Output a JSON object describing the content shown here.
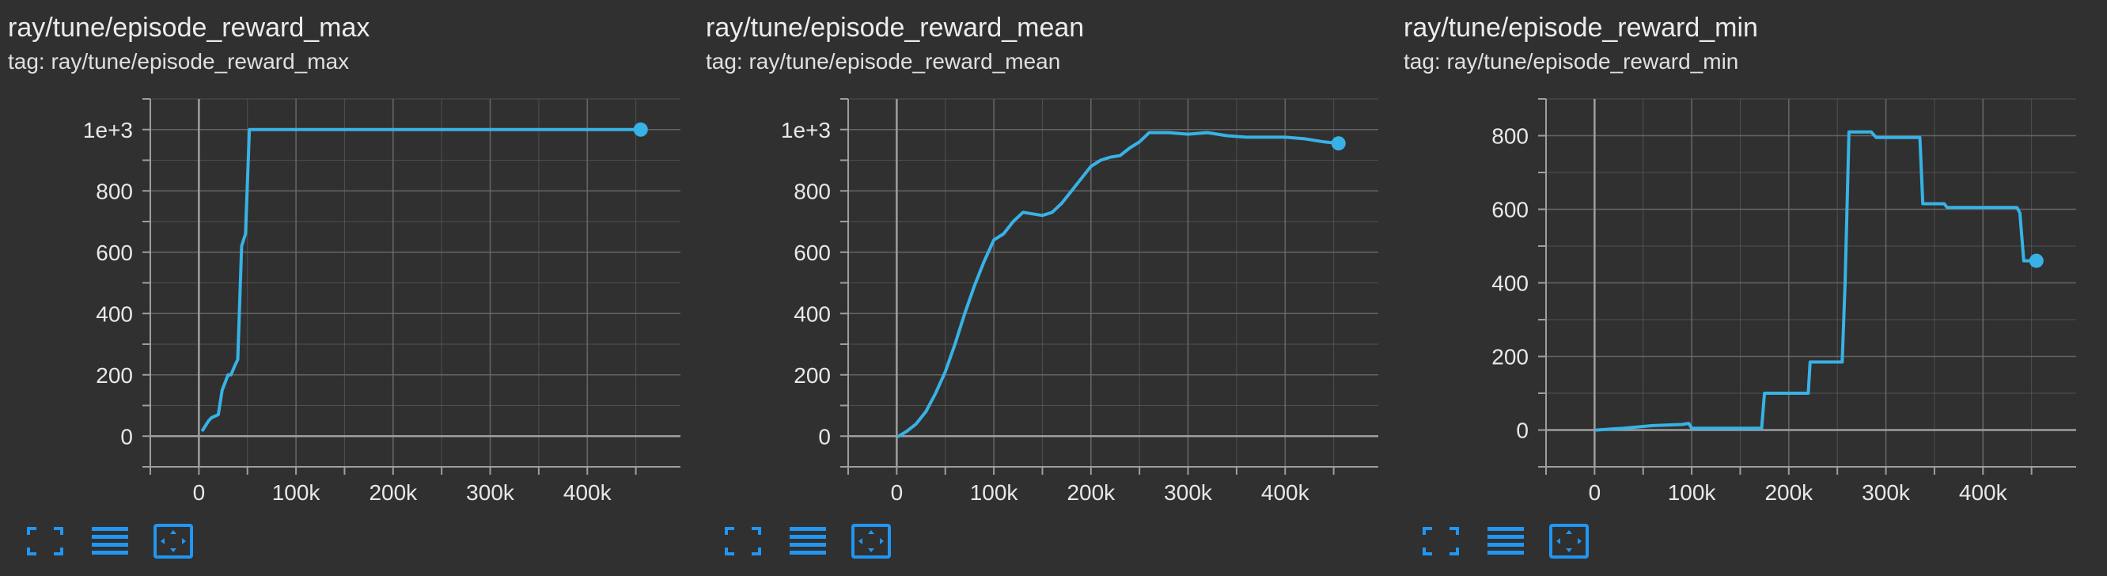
{
  "colors": {
    "background": "#303030",
    "line": "#38b2e6",
    "grid": "#6a6a6a",
    "axis": "#9e9e9e",
    "tick_text": "#e8e8e8",
    "toolbar_icon": "#2196f3"
  },
  "toolbar_icons": [
    "fullscreen-icon",
    "toggle-log-scale-icon",
    "fit-domain-icon"
  ],
  "chart_data": [
    {
      "type": "line",
      "title": "ray/tune/episode_reward_max",
      "tag": "tag: ray/tune/episode_reward_max",
      "xlabel": "",
      "ylabel": "",
      "xlim": [
        -50000,
        500000
      ],
      "ylim": [
        -100,
        1100
      ],
      "grid": true,
      "x_ticks": [
        0,
        100000,
        200000,
        300000,
        400000
      ],
      "x_tick_labels": [
        "0",
        "100k",
        "200k",
        "300k",
        "400k"
      ],
      "y_ticks": [
        0,
        200,
        400,
        600,
        800,
        1000
      ],
      "y_tick_labels": [
        "0",
        "200",
        "400",
        "600",
        "800",
        "1e+3"
      ],
      "series": [
        {
          "x": [
            4000,
            10000,
            13000,
            20000,
            24000,
            30000,
            33000,
            37000,
            40000,
            44000,
            48000,
            52000,
            455000
          ],
          "y": [
            20,
            50,
            60,
            70,
            150,
            200,
            200,
            230,
            250,
            620,
            660,
            1000,
            1000
          ]
        }
      ]
    },
    {
      "type": "line",
      "title": "ray/tune/episode_reward_mean",
      "tag": "tag: ray/tune/episode_reward_mean",
      "xlabel": "",
      "ylabel": "",
      "xlim": [
        -50000,
        500000
      ],
      "ylim": [
        -100,
        1100
      ],
      "grid": true,
      "x_ticks": [
        0,
        100000,
        200000,
        300000,
        400000
      ],
      "x_tick_labels": [
        "0",
        "100k",
        "200k",
        "300k",
        "400k"
      ],
      "y_ticks": [
        0,
        200,
        400,
        600,
        800,
        1000
      ],
      "y_tick_labels": [
        "0",
        "200",
        "400",
        "600",
        "800",
        "1e+3"
      ],
      "series": [
        {
          "x": [
            2000,
            10000,
            20000,
            30000,
            40000,
            50000,
            60000,
            70000,
            80000,
            90000,
            100000,
            110000,
            120000,
            130000,
            140000,
            150000,
            160000,
            170000,
            180000,
            190000,
            200000,
            210000,
            220000,
            230000,
            240000,
            250000,
            260000,
            280000,
            300000,
            320000,
            340000,
            360000,
            380000,
            400000,
            420000,
            440000,
            455000
          ],
          "y": [
            0,
            15,
            40,
            80,
            140,
            210,
            300,
            400,
            490,
            570,
            640,
            660,
            700,
            730,
            725,
            720,
            730,
            760,
            800,
            840,
            880,
            900,
            910,
            915,
            940,
            960,
            990,
            990,
            985,
            990,
            980,
            975,
            975,
            975,
            970,
            960,
            955
          ]
        }
      ]
    },
    {
      "type": "line",
      "title": "ray/tune/episode_reward_min",
      "tag": "tag: ray/tune/episode_reward_min",
      "xlabel": "",
      "ylabel": "",
      "xlim": [
        -50000,
        500000
      ],
      "ylim": [
        -100,
        900
      ],
      "grid": true,
      "x_ticks": [
        0,
        100000,
        200000,
        300000,
        400000
      ],
      "x_tick_labels": [
        "0",
        "100k",
        "200k",
        "300k",
        "400k"
      ],
      "y_ticks": [
        0,
        200,
        400,
        600,
        800
      ],
      "y_tick_labels": [
        "0",
        "200",
        "400",
        "600",
        "800"
      ],
      "series": [
        {
          "x": [
            2000,
            30000,
            60000,
            90000,
            97000,
            100000,
            172000,
            175000,
            220000,
            222000,
            255000,
            258000,
            262000,
            285000,
            290000,
            335000,
            338000,
            360000,
            363000,
            435000,
            438000,
            442000,
            455000
          ],
          "y": [
            0,
            5,
            12,
            15,
            18,
            5,
            5,
            100,
            100,
            185,
            185,
            400,
            810,
            810,
            795,
            795,
            615,
            615,
            605,
            605,
            590,
            460,
            460
          ]
        }
      ]
    }
  ]
}
